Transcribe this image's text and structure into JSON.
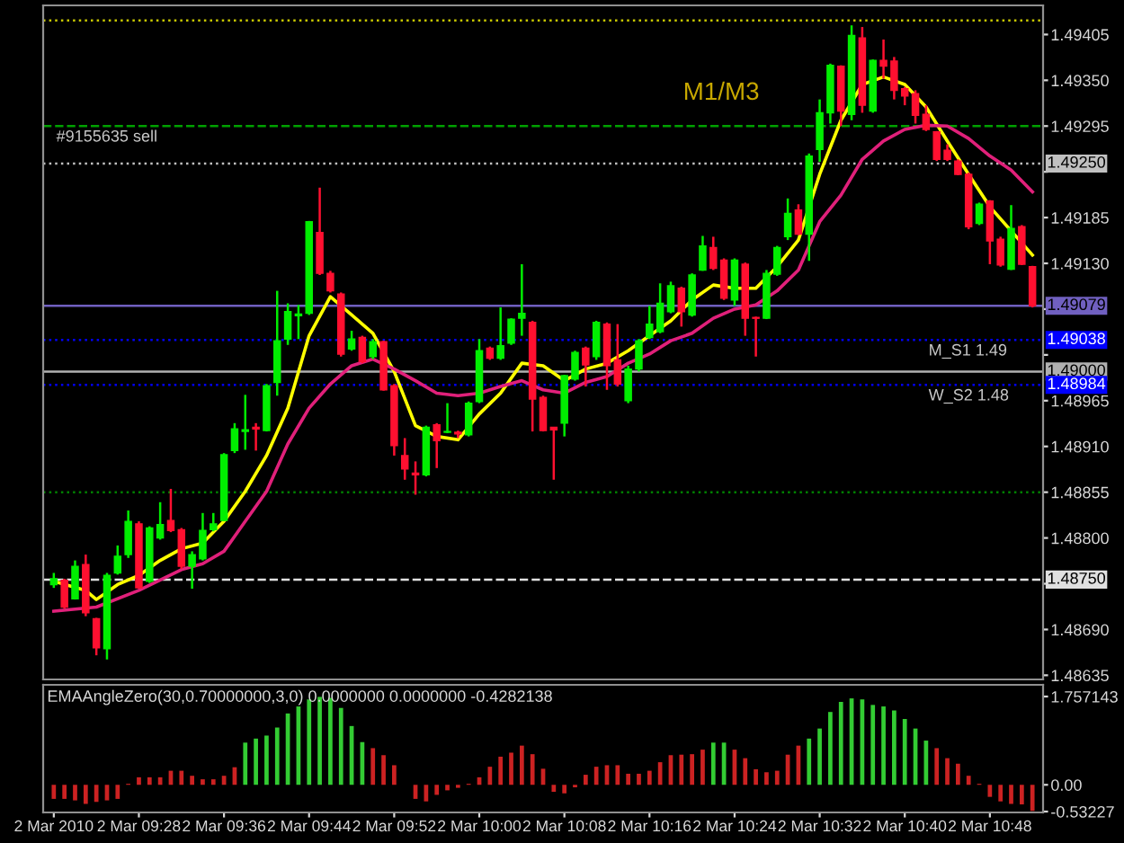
{
  "chart_data": [
    {
      "type": "candlestick",
      "x": [
        "2010-03-02T09:20",
        "2010-03-02T09:21",
        "2010-03-02T09:22",
        "2010-03-02T09:23",
        "2010-03-02T09:24",
        "2010-03-02T09:25",
        "2010-03-02T09:26",
        "2010-03-02T09:27",
        "2010-03-02T09:28",
        "2010-03-02T09:29",
        "2010-03-02T09:30",
        "2010-03-02T09:31",
        "2010-03-02T09:32",
        "2010-03-02T09:33",
        "2010-03-02T09:34",
        "2010-03-02T09:35",
        "2010-03-02T09:36",
        "2010-03-02T09:37",
        "2010-03-02T09:38",
        "2010-03-02T09:39",
        "2010-03-02T09:40",
        "2010-03-02T09:41",
        "2010-03-02T09:42",
        "2010-03-02T09:43",
        "2010-03-02T09:44",
        "2010-03-02T09:45",
        "2010-03-02T09:46",
        "2010-03-02T09:47",
        "2010-03-02T09:48",
        "2010-03-02T09:49",
        "2010-03-02T09:50",
        "2010-03-02T09:51",
        "2010-03-02T09:52",
        "2010-03-02T09:53",
        "2010-03-02T09:54",
        "2010-03-02T09:55",
        "2010-03-02T09:56",
        "2010-03-02T09:57",
        "2010-03-02T09:58",
        "2010-03-02T09:59",
        "2010-03-02T10:00",
        "2010-03-02T10:01",
        "2010-03-02T10:02",
        "2010-03-02T10:03",
        "2010-03-02T10:04",
        "2010-03-02T10:05",
        "2010-03-02T10:06",
        "2010-03-02T10:07",
        "2010-03-02T10:08",
        "2010-03-02T10:09",
        "2010-03-02T10:10",
        "2010-03-02T10:11",
        "2010-03-02T10:12",
        "2010-03-02T10:13",
        "2010-03-02T10:14",
        "2010-03-02T10:15",
        "2010-03-02T10:16",
        "2010-03-02T10:17",
        "2010-03-02T10:18",
        "2010-03-02T10:19",
        "2010-03-02T10:20",
        "2010-03-02T10:21",
        "2010-03-02T10:22",
        "2010-03-02T10:23",
        "2010-03-02T10:24",
        "2010-03-02T10:25",
        "2010-03-02T10:26",
        "2010-03-02T10:27",
        "2010-03-02T10:28",
        "2010-03-02T10:29",
        "2010-03-02T10:30",
        "2010-03-02T10:31",
        "2010-03-02T10:32",
        "2010-03-02T10:33",
        "2010-03-02T10:34",
        "2010-03-02T10:35",
        "2010-03-02T10:36",
        "2010-03-02T10:37",
        "2010-03-02T10:38",
        "2010-03-02T10:39",
        "2010-03-02T10:40",
        "2010-03-02T10:41",
        "2010-03-02T10:42",
        "2010-03-02T10:43",
        "2010-03-02T10:44",
        "2010-03-02T10:45",
        "2010-03-02T10:46",
        "2010-03-02T10:47",
        "2010-03-02T10:48",
        "2010-03-02T10:49",
        "2010-03-02T10:50",
        "2010-03-02T10:51",
        "2010-03-02T10:52"
      ],
      "ohlc": [
        [
          1.48744,
          1.48758,
          1.4874,
          1.48751
        ],
        [
          1.48749,
          1.48751,
          1.48715,
          1.48717
        ],
        [
          1.48727,
          1.48773,
          1.48726,
          1.48766
        ],
        [
          1.48768,
          1.4878,
          1.48706,
          1.4871
        ],
        [
          1.48703,
          1.48704,
          1.48659,
          1.48668
        ],
        [
          1.48667,
          1.48758,
          1.48654,
          1.48755
        ],
        [
          1.48758,
          1.48791,
          1.48756,
          1.48778
        ],
        [
          1.4878,
          1.48833,
          1.48776,
          1.4882
        ],
        [
          1.48817,
          1.4882,
          1.48739,
          1.4874
        ],
        [
          1.48748,
          1.48814,
          1.48746,
          1.48812
        ],
        [
          1.488,
          1.48843,
          1.48798,
          1.48816
        ],
        [
          1.48821,
          1.48859,
          1.48807,
          1.48809
        ],
        [
          1.4881,
          1.48812,
          1.48763,
          1.48766
        ],
        [
          1.48766,
          1.48784,
          1.48739,
          1.4878
        ],
        [
          1.48775,
          1.4883,
          1.48773,
          1.48809
        ],
        [
          1.4881,
          1.4883,
          1.48808,
          1.48817
        ],
        [
          1.48821,
          1.48902,
          1.4882,
          1.489
        ],
        [
          1.48905,
          1.48938,
          1.48902,
          1.48931
        ],
        [
          1.48928,
          1.48972,
          1.48906,
          1.4893
        ],
        [
          1.48933,
          1.48938,
          1.48905,
          1.48931
        ],
        [
          1.48929,
          1.48985,
          1.48928,
          1.48983
        ],
        [
          1.48987,
          1.49097,
          1.48971,
          1.49037
        ],
        [
          1.49039,
          1.49082,
          1.49032,
          1.49072
        ],
        [
          1.49067,
          1.4908,
          1.49039,
          1.49069
        ],
        [
          1.4907,
          1.49181,
          1.49068,
          1.4918
        ],
        [
          1.49167,
          1.49221,
          1.49116,
          1.49118
        ],
        [
          1.49118,
          1.49121,
          1.49095,
          1.49097
        ],
        [
          1.49093,
          1.49095,
          1.49018,
          1.49021
        ],
        [
          1.49027,
          1.49049,
          1.49025,
          1.49039
        ],
        [
          1.49041,
          1.49043,
          1.4901,
          1.49012
        ],
        [
          1.49018,
          1.49039,
          1.49015,
          1.49036
        ],
        [
          1.49036,
          1.49037,
          1.48977,
          1.48978
        ],
        [
          1.48983,
          1.48985,
          1.48899,
          1.48911
        ],
        [
          1.48899,
          1.4892,
          1.4887,
          1.48883
        ],
        [
          1.48878,
          1.48892,
          1.48852,
          1.48876
        ],
        [
          1.48876,
          1.48935,
          1.48874,
          1.48933
        ],
        [
          1.48936,
          1.48938,
          1.48884,
          1.48917
        ],
        [
          1.48927,
          1.48962,
          1.48926,
          1.48928
        ],
        [
          1.48927,
          1.48929,
          1.4892,
          1.48925
        ],
        [
          1.48924,
          1.48964,
          1.48922,
          1.48962
        ],
        [
          1.48964,
          1.49039,
          1.48962,
          1.49025
        ],
        [
          1.49028,
          1.4903,
          1.49014,
          1.49016
        ],
        [
          1.49016,
          1.49077,
          1.49014,
          1.49031
        ],
        [
          1.49034,
          1.49064,
          1.49032,
          1.49063
        ],
        [
          1.49064,
          1.49129,
          1.49043,
          1.4907
        ],
        [
          1.49059,
          1.49061,
          1.48928,
          1.48967
        ],
        [
          1.48969,
          1.48971,
          1.48928,
          1.48929
        ],
        [
          1.48933,
          1.48933,
          1.4887,
          1.4893
        ],
        [
          1.48938,
          1.48996,
          1.48922,
          1.48995
        ],
        [
          1.48991,
          1.49025,
          1.48989,
          1.49023
        ],
        [
          1.49028,
          1.4903,
          1.48982,
          1.49008
        ],
        [
          1.49018,
          1.49061,
          1.49014,
          1.49059
        ],
        [
          1.49057,
          1.49059,
          1.48978,
          1.49007
        ],
        [
          1.49014,
          1.49057,
          1.48982,
          1.48985
        ],
        [
          1.48965,
          1.49007,
          1.48962,
          1.49003
        ],
        [
          1.49003,
          1.49039,
          1.49,
          1.49037
        ],
        [
          1.49041,
          1.49079,
          1.49039,
          1.49057
        ],
        [
          1.49048,
          1.49106,
          1.49046,
          1.49082
        ],
        [
          1.49072,
          1.49108,
          1.4907,
          1.49103
        ],
        [
          1.491,
          1.49102,
          1.49054,
          1.49072
        ],
        [
          1.49068,
          1.49118,
          1.49066,
          1.49116
        ],
        [
          1.49122,
          1.49163,
          1.49121,
          1.49151
        ],
        [
          1.49149,
          1.49162,
          1.49122,
          1.49124
        ],
        [
          1.49134,
          1.49136,
          1.49086,
          1.49088
        ],
        [
          1.49086,
          1.49136,
          1.49079,
          1.49134
        ],
        [
          1.49129,
          1.49131,
          1.49043,
          1.49064
        ],
        [
          1.49065,
          1.49066,
          1.49018,
          1.49064
        ],
        [
          1.49064,
          1.49122,
          1.49063,
          1.49118
        ],
        [
          1.49117,
          1.49151,
          1.49115,
          1.49149
        ],
        [
          1.49162,
          1.49208,
          1.49158,
          1.4919
        ],
        [
          1.49194,
          1.49201,
          1.49164,
          1.49165
        ],
        [
          1.49165,
          1.49262,
          1.49133,
          1.49259
        ],
        [
          1.49267,
          1.49327,
          1.49252,
          1.49311
        ],
        [
          1.49311,
          1.4937,
          1.49298,
          1.49368
        ],
        [
          1.49367,
          1.49368,
          1.49295,
          1.49313
        ],
        [
          1.49309,
          1.49416,
          1.49302,
          1.49404
        ],
        [
          1.49401,
          1.49414,
          1.49311,
          1.4932
        ],
        [
          1.49313,
          1.49375,
          1.49311,
          1.49374
        ],
        [
          1.49374,
          1.49399,
          1.49352,
          1.49367
        ],
        [
          1.49373,
          1.49378,
          1.49327,
          1.49338
        ],
        [
          1.4934,
          1.49342,
          1.4932,
          1.49331
        ],
        [
          1.49334,
          1.49338,
          1.49298,
          1.49308
        ],
        [
          1.49309,
          1.4932,
          1.49289,
          1.49291
        ],
        [
          1.49288,
          1.49289,
          1.49253,
          1.49255
        ],
        [
          1.49266,
          1.49273,
          1.49253,
          1.49255
        ],
        [
          1.49253,
          1.49255,
          1.49236,
          1.49237
        ],
        [
          1.49237,
          1.49239,
          1.49171,
          1.49174
        ],
        [
          1.49178,
          1.49203,
          1.49176,
          1.49201
        ],
        [
          1.49205,
          1.49206,
          1.49129,
          1.49157
        ],
        [
          1.49159,
          1.49162,
          1.49126,
          1.49128
        ],
        [
          1.49123,
          1.492,
          1.49122,
          1.49172
        ],
        [
          1.49174,
          1.49176,
          1.49128,
          1.49129
        ],
        [
          1.49126,
          1.49127,
          1.49077,
          1.49079
        ]
      ],
      "series": [
        {
          "type": "line",
          "color": "#ffff00",
          "x": [
            "2010-03-02T09:20",
            "2010-03-02T09:23",
            "2010-03-02T09:24",
            "2010-03-02T09:26",
            "2010-03-02T09:28",
            "2010-03-02T09:30",
            "2010-03-02T09:32",
            "2010-03-02T09:34",
            "2010-03-02T09:36",
            "2010-03-02T09:38",
            "2010-03-02T09:40",
            "2010-03-02T09:42",
            "2010-03-02T09:44",
            "2010-03-02T09:46",
            "2010-03-02T09:48",
            "2010-03-02T09:50",
            "2010-03-02T09:52",
            "2010-03-02T09:54",
            "2010-03-02T09:56",
            "2010-03-02T09:58",
            "2010-03-02T10:00",
            "2010-03-02T10:02",
            "2010-03-02T10:04",
            "2010-03-02T10:06",
            "2010-03-02T10:08",
            "2010-03-02T10:10",
            "2010-03-02T10:12",
            "2010-03-02T10:14",
            "2010-03-02T10:16",
            "2010-03-02T10:18",
            "2010-03-02T10:20",
            "2010-03-02T10:22",
            "2010-03-02T10:24",
            "2010-03-02T10:26",
            "2010-03-02T10:28",
            "2010-03-02T10:30",
            "2010-03-02T10:32",
            "2010-03-02T10:34",
            "2010-03-02T10:36",
            "2010-03-02T10:38",
            "2010-03-02T10:40",
            "2010-03-02T10:42",
            "2010-03-02T10:44",
            "2010-03-02T10:46",
            "2010-03-02T10:48",
            "2010-03-02T10:50",
            "2010-03-02T10:52"
          ],
          "values": [
            1.48748,
            1.48737,
            1.48726,
            1.48744,
            1.48755,
            1.48773,
            1.48787,
            1.48794,
            1.4882,
            1.48856,
            1.48899,
            1.48956,
            1.49043,
            1.4909,
            1.49068,
            1.49046,
            1.49,
            1.48935,
            1.48922,
            1.48918,
            1.48949,
            1.48974,
            1.4901,
            1.49007,
            1.48989,
            1.49003,
            1.4901,
            1.49025,
            1.49043,
            1.49061,
            1.49086,
            1.49104,
            1.491,
            1.491,
            1.49126,
            1.49158,
            1.49237,
            1.49302,
            1.49345,
            1.49354,
            1.49345,
            1.49318,
            1.49277,
            1.49237,
            1.49198,
            1.49169,
            1.4914
          ]
        },
        {
          "type": "line",
          "color": "#e0207a",
          "x": [
            "2010-03-02T09:20",
            "2010-03-02T09:24",
            "2010-03-02T09:28",
            "2010-03-02T09:32",
            "2010-03-02T09:34",
            "2010-03-02T09:36",
            "2010-03-02T09:38",
            "2010-03-02T09:40",
            "2010-03-02T09:42",
            "2010-03-02T09:44",
            "2010-03-02T09:46",
            "2010-03-02T09:48",
            "2010-03-02T09:50",
            "2010-03-02T09:52",
            "2010-03-02T09:54",
            "2010-03-02T09:56",
            "2010-03-02T09:58",
            "2010-03-02T10:00",
            "2010-03-02T10:02",
            "2010-03-02T10:04",
            "2010-03-02T10:06",
            "2010-03-02T10:08",
            "2010-03-02T10:10",
            "2010-03-02T10:12",
            "2010-03-02T10:14",
            "2010-03-02T10:16",
            "2010-03-02T10:18",
            "2010-03-02T10:20",
            "2010-03-02T10:22",
            "2010-03-02T10:24",
            "2010-03-02T10:26",
            "2010-03-02T10:28",
            "2010-03-02T10:30",
            "2010-03-02T10:32",
            "2010-03-02T10:34",
            "2010-03-02T10:36",
            "2010-03-02T10:38",
            "2010-03-02T10:40",
            "2010-03-02T10:42",
            "2010-03-02T10:44",
            "2010-03-02T10:46",
            "2010-03-02T10:48",
            "2010-03-02T10:50",
            "2010-03-02T10:52"
          ],
          "values": [
            1.48712,
            1.48717,
            1.48737,
            1.48762,
            1.48769,
            1.48784,
            1.4882,
            1.48856,
            1.48913,
            1.48956,
            1.48985,
            1.49007,
            1.49015,
            1.49003,
            1.48989,
            1.48974,
            1.48971,
            1.48974,
            1.48982,
            1.48989,
            1.48978,
            1.48974,
            1.48987,
            1.48994,
            1.4901,
            1.49021,
            1.49037,
            1.49046,
            1.49064,
            1.49075,
            1.4908,
            1.49097,
            1.49122,
            1.4918,
            1.49212,
            1.49255,
            1.49277,
            1.49291,
            1.49296,
            1.49295,
            1.4928,
            1.49259,
            1.49242,
            1.49216
          ]
        }
      ],
      "xlim": [
        "2010-03-02T09:19",
        "2010-03-02T10:53"
      ],
      "ylim": [
        1.4863,
        1.4944
      ],
      "yticks": [
        {
          "value": 1.49405,
          "label": "1.49405"
        },
        {
          "value": 1.4935,
          "label": "1.49350"
        },
        {
          "value": 1.49295,
          "label": "1.49295"
        },
        {
          "value": 1.4924,
          "label": null
        },
        {
          "value": 1.49185,
          "label": "1.49185"
        },
        {
          "value": 1.4913,
          "label": "1.49130"
        },
        {
          "value": 1.49075,
          "label": null
        },
        {
          "value": 1.4902,
          "label": null
        },
        {
          "value": 1.48965,
          "label": "1.48965"
        },
        {
          "value": 1.4891,
          "label": "1.48910"
        },
        {
          "value": 1.48855,
          "label": "1.48855"
        },
        {
          "value": 1.488,
          "label": "1.48800"
        },
        {
          "value": 1.48745,
          "label": null
        },
        {
          "value": 1.4869,
          "label": "1.48690"
        },
        {
          "value": 1.48635,
          "label": "1.48635"
        }
      ],
      "tick_labels": "y",
      "ref_lines": [
        {
          "axis": "y",
          "value": 1.49422,
          "color": "#c8c800",
          "line_style": "dotted"
        },
        {
          "axis": "y",
          "value": 1.49295,
          "color": "#00a000",
          "line_style": "dashed"
        },
        {
          "axis": "y",
          "value": 1.4925,
          "label": "1.49250",
          "color": "#c0c0c0",
          "line_style": "dotted"
        },
        {
          "axis": "y",
          "value": 1.49079,
          "label": "1.49079",
          "color": "#7060c0",
          "line_style": "solid"
        },
        {
          "axis": "y",
          "value": 1.49038,
          "label": "1.49038",
          "color": "#0000ff",
          "line_style": "dotted"
        },
        {
          "axis": "y",
          "value": 1.49,
          "label": "1.49000",
          "color": "#b0b0b0",
          "line_style": "solid"
        },
        {
          "axis": "y",
          "value": 1.48984,
          "label": "1.48984",
          "color": "#0000ff",
          "line_style": "dotted"
        },
        {
          "axis": "y",
          "value": 1.48855,
          "color": "#008000",
          "line_style": "dotted"
        },
        {
          "axis": "y",
          "value": 1.4875,
          "label": "1.48750",
          "color": "#e0e0e0",
          "line_style": "dashed"
        }
      ],
      "annotations": [
        "M1/M3",
        {
          "text": "#9155635 sell",
          "x": "2010-03-02T09:20",
          "y": 1.49295
        },
        {
          "text": "M_S1 1.49",
          "x": "2010-03-02T10:42",
          "y": 1.49038
        },
        {
          "text": "W_S2 1.48",
          "x": "2010-03-02T10:42",
          "y": 1.48984
        }
      ]
    },
    {
      "type": "bar",
      "title": "EMAAngleZero(30,0.70000000,3,0) 0.0000000 0.0000000 -0.4282138",
      "x": [
        "2010-03-02T09:20",
        "2010-03-02T09:21",
        "2010-03-02T09:22",
        "2010-03-02T09:23",
        "2010-03-02T09:24",
        "2010-03-02T09:25",
        "2010-03-02T09:26",
        "2010-03-02T09:27",
        "2010-03-02T09:28",
        "2010-03-02T09:29",
        "2010-03-02T09:30",
        "2010-03-02T09:31",
        "2010-03-02T09:32",
        "2010-03-02T09:33",
        "2010-03-02T09:34",
        "2010-03-02T09:35",
        "2010-03-02T09:36",
        "2010-03-02T09:37",
        "2010-03-02T09:38",
        "2010-03-02T09:39",
        "2010-03-02T09:40",
        "2010-03-02T09:41",
        "2010-03-02T09:42",
        "2010-03-02T09:43",
        "2010-03-02T09:44",
        "2010-03-02T09:45",
        "2010-03-02T09:46",
        "2010-03-02T09:47",
        "2010-03-02T09:48",
        "2010-03-02T09:49",
        "2010-03-02T09:50",
        "2010-03-02T09:51",
        "2010-03-02T09:52",
        "2010-03-02T09:53",
        "2010-03-02T09:54",
        "2010-03-02T09:55",
        "2010-03-02T09:56",
        "2010-03-02T09:57",
        "2010-03-02T09:58",
        "2010-03-02T09:59",
        "2010-03-02T10:00",
        "2010-03-02T10:01",
        "2010-03-02T10:02",
        "2010-03-02T10:03",
        "2010-03-02T10:04",
        "2010-03-02T10:05",
        "2010-03-02T10:06",
        "2010-03-02T10:07",
        "2010-03-02T10:08",
        "2010-03-02T10:09",
        "2010-03-02T10:10",
        "2010-03-02T10:11",
        "2010-03-02T10:12",
        "2010-03-02T10:13",
        "2010-03-02T10:14",
        "2010-03-02T10:15",
        "2010-03-02T10:16",
        "2010-03-02T10:17",
        "2010-03-02T10:18",
        "2010-03-02T10:19",
        "2010-03-02T10:20",
        "2010-03-02T10:21",
        "2010-03-02T10:22",
        "2010-03-02T10:23",
        "2010-03-02T10:24",
        "2010-03-02T10:25",
        "2010-03-02T10:26",
        "2010-03-02T10:27",
        "2010-03-02T10:28",
        "2010-03-02T10:29",
        "2010-03-02T10:30",
        "2010-03-02T10:31",
        "2010-03-02T10:32",
        "2010-03-02T10:33",
        "2010-03-02T10:34",
        "2010-03-02T10:35",
        "2010-03-02T10:36",
        "2010-03-02T10:37",
        "2010-03-02T10:38",
        "2010-03-02T10:39",
        "2010-03-02T10:40",
        "2010-03-02T10:41",
        "2010-03-02T10:42",
        "2010-03-02T10:43",
        "2010-03-02T10:44",
        "2010-03-02T10:45",
        "2010-03-02T10:46",
        "2010-03-02T10:47",
        "2010-03-02T10:48",
        "2010-03-02T10:49",
        "2010-03-02T10:50",
        "2010-03-02T10:51",
        "2010-03-02T10:52"
      ],
      "values": [
        -0.28,
        -0.28,
        -0.31,
        -0.38,
        -0.34,
        -0.31,
        -0.28,
        0.02,
        0.15,
        0.15,
        0.15,
        0.28,
        0.28,
        0.18,
        0.11,
        0.11,
        0.18,
        0.35,
        0.84,
        0.92,
        0.98,
        1.14,
        1.42,
        1.56,
        1.7,
        1.75,
        1.73,
        1.53,
        1.17,
        0.85,
        0.73,
        0.59,
        0.39,
        null,
        -0.28,
        -0.33,
        -0.2,
        -0.11,
        -0.06,
        0.02,
        0.15,
        0.36,
        0.56,
        0.64,
        0.78,
        0.61,
        0.32,
        -0.14,
        -0.17,
        -0.05,
        0.2,
        0.36,
        0.39,
        0.39,
        0.22,
        0.22,
        0.28,
        0.45,
        0.59,
        0.6,
        0.61,
        0.7,
        0.84,
        0.84,
        0.7,
        0.53,
        0.31,
        0.25,
        0.28,
        0.6,
        0.78,
        0.92,
        1.12,
        1.45,
        1.65,
        1.72,
        1.7,
        1.59,
        1.56,
        1.48,
        1.31,
        1.12,
        0.88,
        0.73,
        0.53,
        0.42,
        0.18,
        0.02,
        -0.24,
        -0.33,
        -0.38,
        -0.39,
        -0.52
      ],
      "colors": [
        "#cc2222",
        "#cc2222",
        "#cc2222",
        "#cc2222",
        "#cc2222",
        "#cc2222",
        "#cc2222",
        "#cc2222",
        "#cc2222",
        "#cc2222",
        "#cc2222",
        "#cc2222",
        "#cc2222",
        "#cc2222",
        "#cc2222",
        "#cc2222",
        "#cc2222",
        "#cc2222",
        "#33cc33",
        "#33cc33",
        "#33cc33",
        "#33cc33",
        "#33cc33",
        "#33cc33",
        "#33cc33",
        "#33cc33",
        "#33cc33",
        "#33cc33",
        "#33cc33",
        "#33cc33",
        "#cc2222",
        "#cc2222",
        "#cc2222",
        "#cc2222",
        "#cc2222",
        "#cc2222",
        "#cc2222",
        "#cc2222",
        "#cc2222",
        "#cc2222",
        "#cc2222",
        "#cc2222",
        "#cc2222",
        "#cc2222",
        "#cc2222",
        "#cc2222",
        "#cc2222",
        "#cc2222",
        "#cc2222",
        "#cc2222",
        "#cc2222",
        "#cc2222",
        "#cc2222",
        "#cc2222",
        "#cc2222",
        "#cc2222",
        "#cc2222",
        "#cc2222",
        "#cc2222",
        "#cc2222",
        "#cc2222",
        "#cc2222",
        "#33cc33",
        "#33cc33",
        "#cc2222",
        "#cc2222",
        "#cc2222",
        "#cc2222",
        "#cc2222",
        "#cc2222",
        "#cc2222",
        "#33cc33",
        "#33cc33",
        "#33cc33",
        "#33cc33",
        "#33cc33",
        "#33cc33",
        "#33cc33",
        "#33cc33",
        "#33cc33",
        "#33cc33",
        "#33cc33",
        "#33cc33",
        "#cc2222",
        "#cc2222",
        "#cc2222",
        "#cc2222",
        "#cc2222",
        "#cc2222",
        "#cc2222",
        "#cc2222",
        "#cc2222",
        "#cc2222"
      ],
      "xlim": [
        "2010-03-02T09:19",
        "2010-03-02T10:53"
      ],
      "xticks": [
        {
          "value": "2010-03-02T09:20",
          "label": "2 Mar 2010"
        },
        {
          "value": "2010-03-02T09:28",
          "label": "2 Mar 09:28"
        },
        {
          "value": "2010-03-02T09:36",
          "label": "2 Mar 09:36"
        },
        {
          "value": "2010-03-02T09:44",
          "label": "2 Mar 09:44"
        },
        {
          "value": "2010-03-02T09:52",
          "label": "2 Mar 09:52"
        },
        {
          "value": "2010-03-02T10:00",
          "label": "2 Mar 10:00"
        },
        {
          "value": "2010-03-02T10:08",
          "label": "2 Mar 10:08"
        },
        {
          "value": "2010-03-02T10:16",
          "label": "2 Mar 10:16"
        },
        {
          "value": "2010-03-02T10:24",
          "label": "2 Mar 10:24"
        },
        {
          "value": "2010-03-02T10:32",
          "label": "2 Mar 10:32"
        },
        {
          "value": "2010-03-02T10:40",
          "label": "2 Mar 10:40"
        },
        {
          "value": "2010-03-02T10:48",
          "label": "2 Mar 10:48"
        }
      ],
      "ylim": [
        -0.55,
        1.99
      ],
      "yticks": [
        {
          "value": 1.757143,
          "label": "1.757143"
        },
        {
          "value": 0,
          "label": "0.00"
        },
        {
          "value": -0.53227,
          "label": "-0.53227"
        }
      ]
    }
  ]
}
